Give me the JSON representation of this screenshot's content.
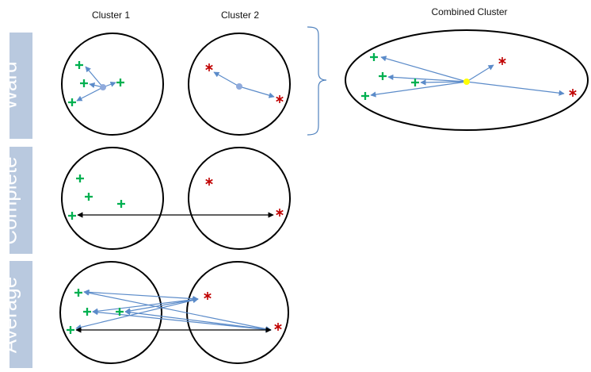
{
  "column_labels": {
    "cluster1": "Cluster 1",
    "cluster2": "Cluster 2",
    "combined": "Combined Cluster"
  },
  "row_labels": {
    "ward": "Ward",
    "complete": "Complete",
    "average": "Average"
  },
  "colors": {
    "row_band": "#b9c9df",
    "arrow_blue": "#5b8bc9",
    "arrow_black": "#000000",
    "plus_green": "#00b050",
    "star_red": "#c00000",
    "centroid_gray": "#8faadc",
    "combined_centroid_yellow": "#ffff00",
    "brace": "#4f81bd"
  },
  "markers": {
    "cluster1_points": "plus",
    "cluster2_points": "asterisk"
  }
}
